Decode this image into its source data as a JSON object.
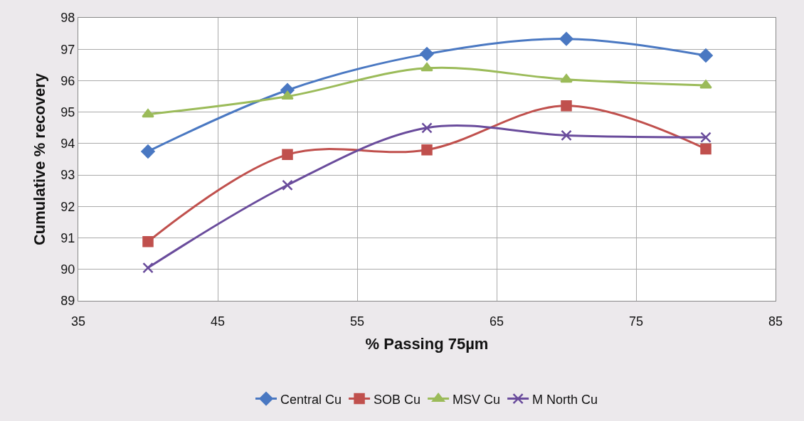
{
  "chart_data": {
    "type": "line",
    "xlabel": "% Passing 75µm",
    "ylabel": "Cumulative % recovery",
    "x": [
      40,
      50,
      60,
      70,
      80
    ],
    "series": [
      {
        "name": "Central Cu",
        "color": "#4a78c2",
        "marker": "diamond",
        "values": [
          93.75,
          95.7,
          96.85,
          97.33,
          96.8
        ]
      },
      {
        "name": "SOB Cu",
        "color": "#c0504d",
        "marker": "square",
        "values": [
          90.88,
          93.65,
          93.8,
          95.2,
          93.83
        ]
      },
      {
        "name": "MSV Cu",
        "color": "#9bbb59",
        "marker": "triangle",
        "values": [
          94.93,
          95.5,
          96.4,
          96.04,
          95.85
        ]
      },
      {
        "name": "M North Cu",
        "color": "#6a4c9c",
        "marker": "cross",
        "values": [
          90.05,
          92.68,
          94.5,
          94.26,
          94.2
        ]
      }
    ],
    "xlim": [
      35,
      85
    ],
    "xticks": [
      35,
      45,
      55,
      65,
      75,
      85
    ],
    "ylim": [
      89,
      98
    ],
    "yticks": [
      89,
      90,
      91,
      92,
      93,
      94,
      95,
      96,
      97,
      98
    ],
    "grid": true,
    "legend": "bottom"
  }
}
